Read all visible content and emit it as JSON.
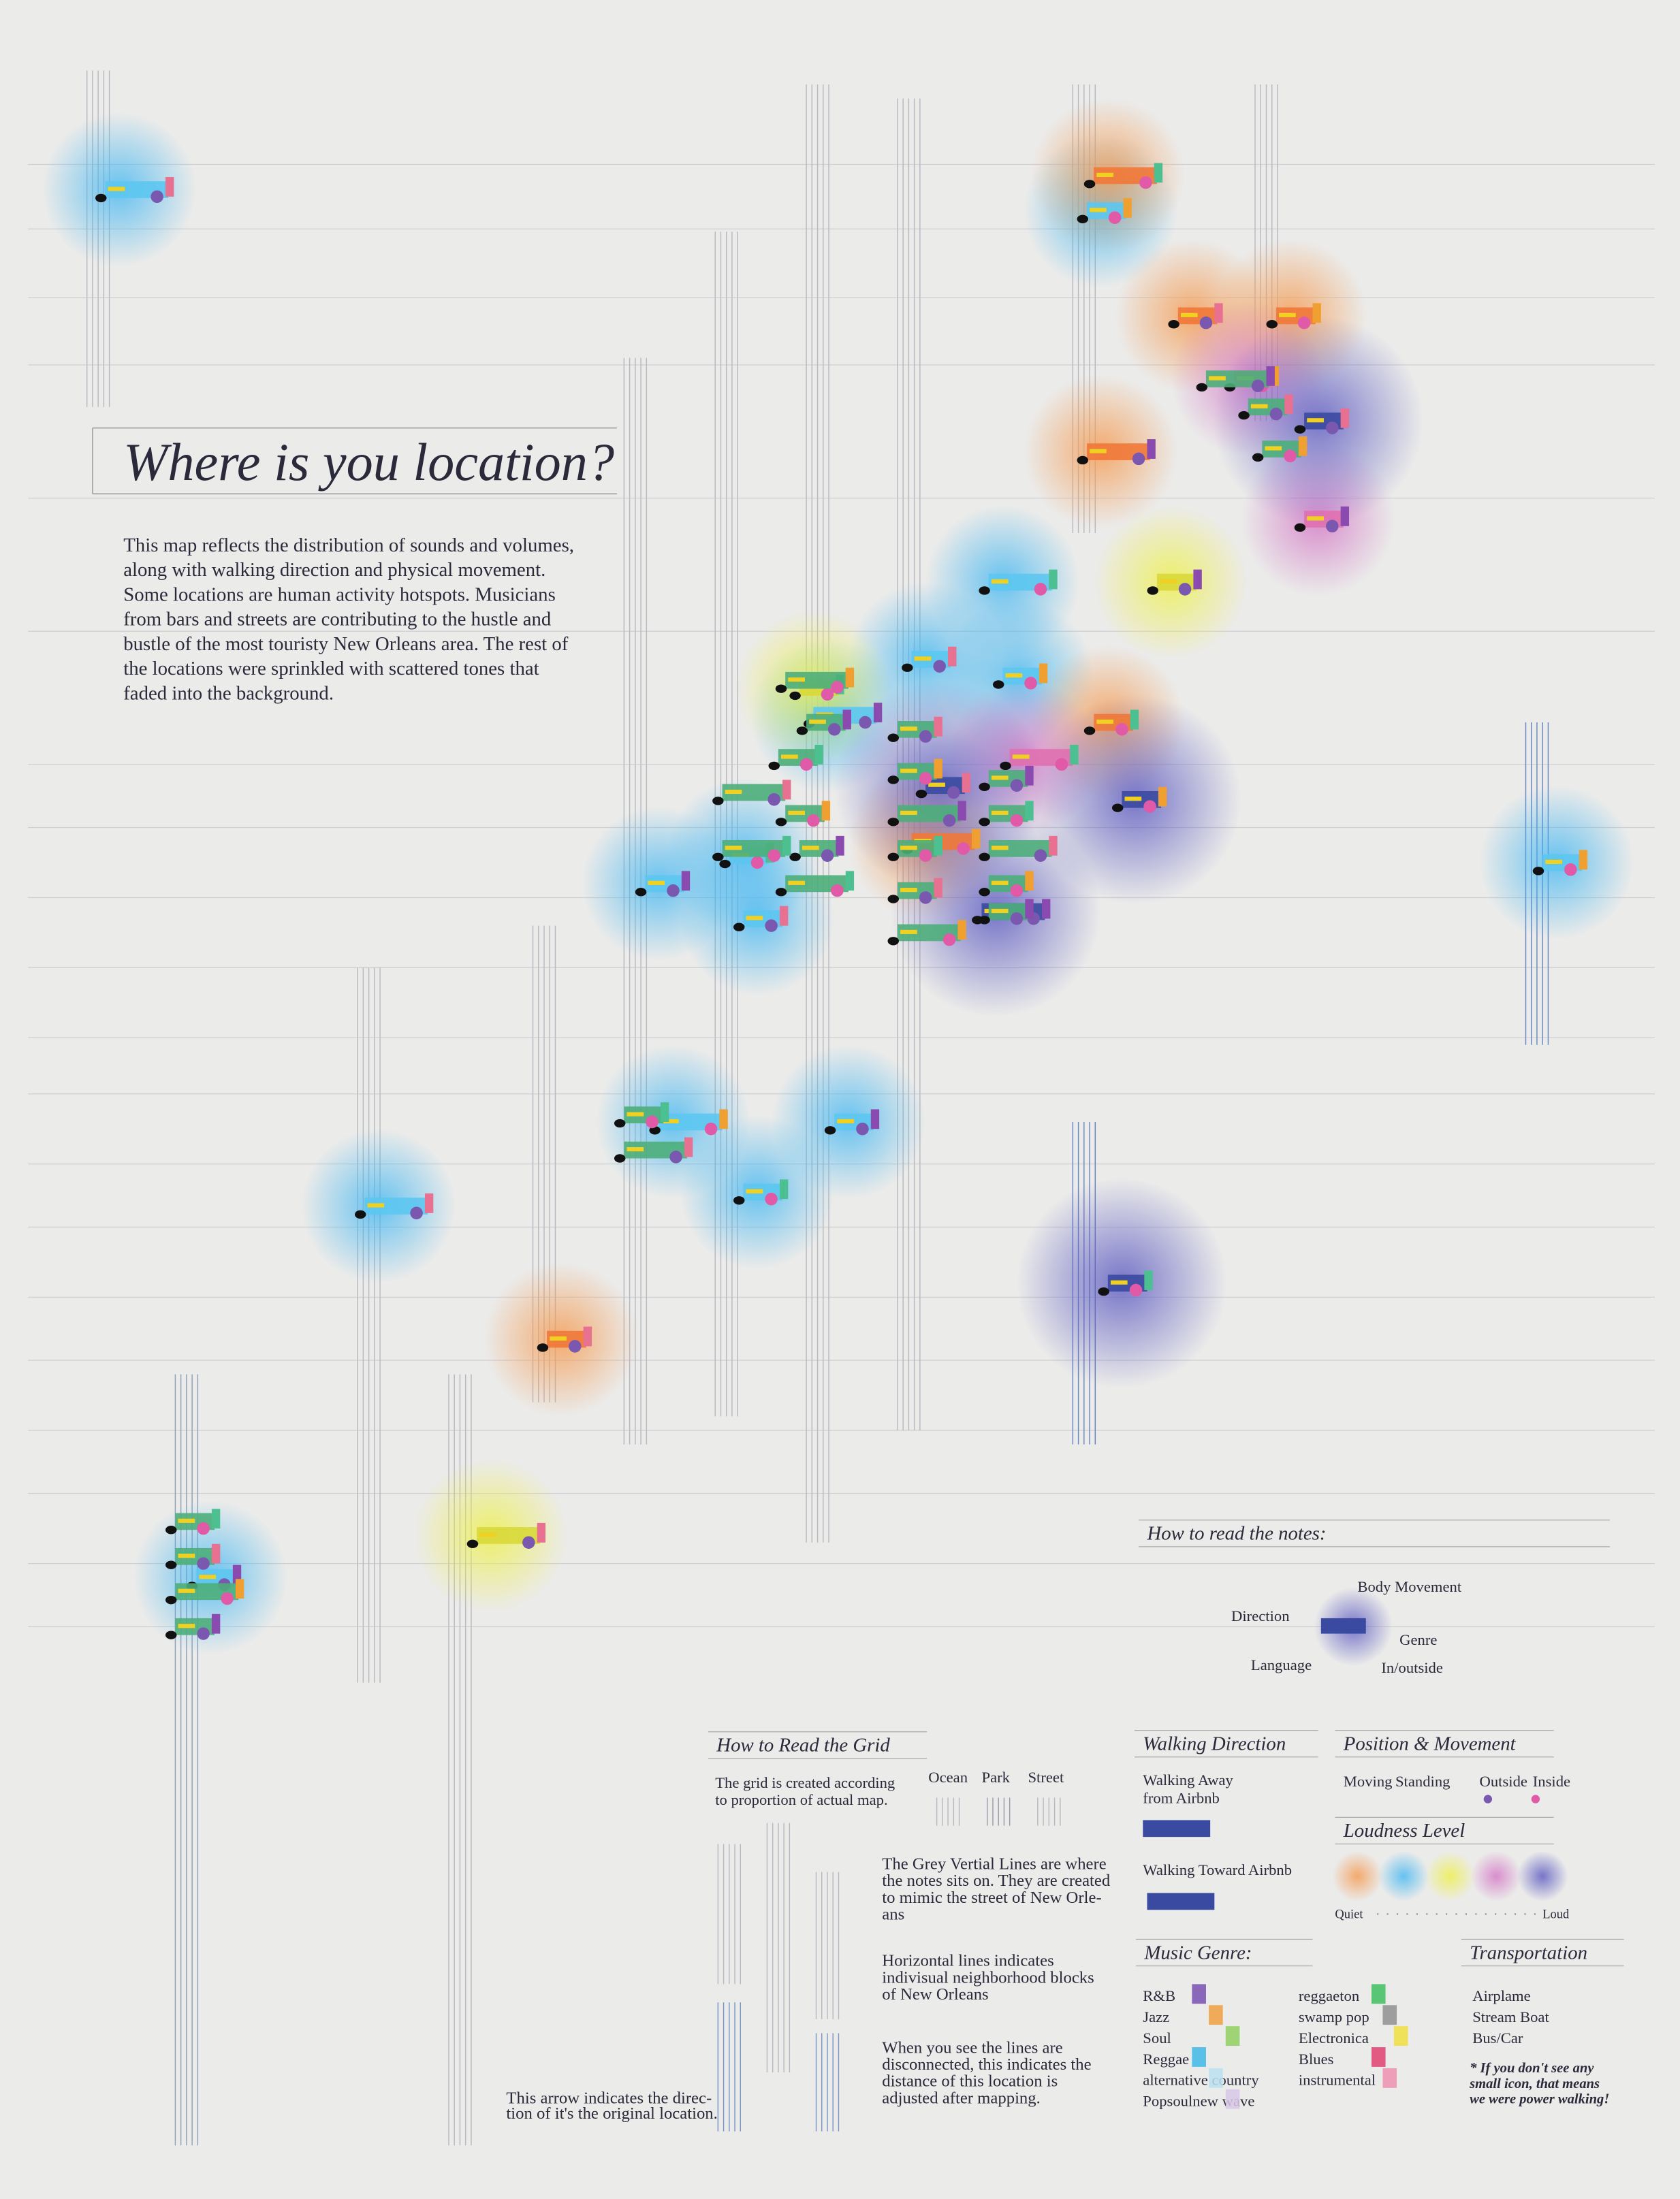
{
  "title": "Where is you location?",
  "intro": [
    "This map reflects the distribution of sounds and volumes,",
    "along with walking direction and physical movement.",
    "Some locations are human activity hotspots. Musicians",
    "from bars and streets are contributing to the hustle and",
    "bustle of the most touristy New Orleans area. The rest of",
    "the locations were sprinkled with scattered tones that",
    "faded into the background."
  ],
  "notes_legend": {
    "title": "How to read the notes:",
    "labels": [
      "Body Movement",
      "Direction",
      "Genre",
      "Language",
      "In/outside"
    ]
  },
  "grid_legend": {
    "title": "How to Read the Grid",
    "subtitle": [
      "The grid is created according",
      "to proportion of actual map."
    ],
    "columns": [
      "Ocean",
      "Park",
      "Street"
    ],
    "notes": [
      [
        "The Grey Vertial Lines are where",
        "the notes sits on. They are created",
        "to mimic the street of New Orle-",
        "ans"
      ],
      [
        "Horizontal lines indicates",
        "indivisual neighborhood blocks",
        "of New Orleans"
      ],
      [
        "When you see the lines are",
        "disconnected, this indicates the",
        "distance of this location is",
        "adjusted after mapping."
      ]
    ],
    "arrow_note": [
      "This arrow indicates the direc-",
      "tion of it's the original location."
    ]
  },
  "walking_direction": {
    "title": "Walking Direction",
    "away": [
      "Walking Away",
      "from Airbnb"
    ],
    "toward": "Walking Toward Airbnb"
  },
  "position_movement": {
    "title": "Position & Movement",
    "labels": [
      "Moving",
      "Standing",
      "Outside",
      "Inside"
    ]
  },
  "loudness": {
    "title": "Loudness Level",
    "quiet": "Quiet",
    "loud": "Loud"
  },
  "music_genre": {
    "title": "Music Genre:",
    "genres": [
      "R&B",
      "Jazz",
      "Soul",
      "Reggae",
      "alternative country",
      "Popsoulnew wave",
      "reggaeton",
      "swamp pop",
      "Electronica",
      "Blues",
      "instrumental"
    ]
  },
  "transportation": {
    "title": "Transportation",
    "modes": [
      "Airplame",
      "Stream Boat",
      "Bus/Car"
    ],
    "note": [
      "* If you don't see any",
      "small icon, that means",
      "we were power walking!"
    ]
  }
}
